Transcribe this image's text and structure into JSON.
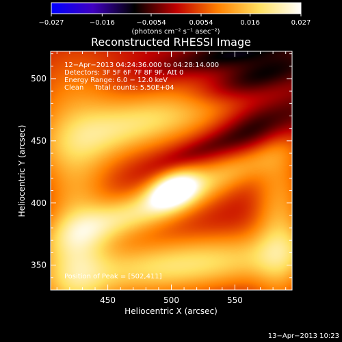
{
  "chart_data": {
    "type": "heatmap",
    "title": "Reconstructed RHESSI Image",
    "xlabel": "Heliocentric X (arcsec)",
    "ylabel": "Heliocentric Y (arcsec)",
    "xlim": [
      405,
      595
    ],
    "ylim": [
      330,
      522
    ],
    "x_ticks": [
      450,
      500,
      550
    ],
    "y_ticks": [
      350,
      400,
      450,
      500
    ],
    "x_tick_labels": [
      "450",
      "500",
      "550"
    ],
    "y_tick_labels": [
      "350",
      "400",
      "450",
      "500"
    ],
    "colorbar": {
      "range": [
        -0.027,
        0.027
      ],
      "tick_values": [
        -0.027,
        -0.016,
        -0.0054,
        0.0054,
        0.016,
        0.027
      ],
      "tick_labels": [
        "−0.027",
        "−0.016",
        "−0.0054",
        "0.0054",
        "0.016",
        "0.027"
      ],
      "unit_label": "(photons cm⁻² s⁻¹ asec⁻²)",
      "colormap": [
        "#0000ff",
        "#4000c0",
        "#000000",
        "#c00000",
        "#ff8000",
        "#ffe060",
        "#ffffff"
      ]
    },
    "annotations": [
      "12−Apr−2013 04:24:36.000 to 04:28:14.000",
      "Detectors: 3F 5F 6F 7F 8F 9F, Att 0",
      "Energy Range: 6.0 − 12.0 keV",
      "Clean     Total counts: 5.50E+04"
    ],
    "peak_label": "Position of Peak = [502,411]",
    "peak": {
      "x": 502,
      "y": 411,
      "value": 0.027
    },
    "timestamp": "13−Apr−2013 10:23",
    "sources": [
      {
        "x": 502,
        "y": 411,
        "sx": 14,
        "sy": 9,
        "angle": 25,
        "amp": 0.027
      },
      {
        "x": 470,
        "y": 391,
        "sx": 46,
        "sy": 12,
        "angle": 18,
        "amp": 0.018
      },
      {
        "x": 488,
        "y": 468,
        "sx": 52,
        "sy": 16,
        "angle": 16,
        "amp": 0.018
      },
      {
        "x": 425,
        "y": 470,
        "sx": 28,
        "sy": 40,
        "angle": 0,
        "amp": 0.01
      },
      {
        "x": 545,
        "y": 426,
        "sx": 34,
        "sy": 10,
        "angle": 22,
        "amp": 0.011
      },
      {
        "x": 508,
        "y": 350,
        "sx": 75,
        "sy": 16,
        "angle": 6,
        "amp": 0.019
      },
      {
        "x": 425,
        "y": 365,
        "sx": 18,
        "sy": 50,
        "angle": 0,
        "amp": 0.013
      },
      {
        "x": 585,
        "y": 385,
        "sx": 14,
        "sy": 50,
        "angle": 0,
        "amp": 0.012
      },
      {
        "x": 575,
        "y": 465,
        "sx": 30,
        "sy": 13,
        "angle": 25,
        "amp": -0.01
      },
      {
        "x": 565,
        "y": 500,
        "sx": 38,
        "sy": 10,
        "angle": 18,
        "amp": -0.012
      },
      {
        "x": 548,
        "y": 520,
        "sx": 38,
        "sy": 8,
        "angle": 12,
        "amp": -0.01
      },
      {
        "x": 520,
        "y": 442,
        "sx": 26,
        "sy": 6,
        "angle": 20,
        "amp": -0.004
      }
    ]
  }
}
